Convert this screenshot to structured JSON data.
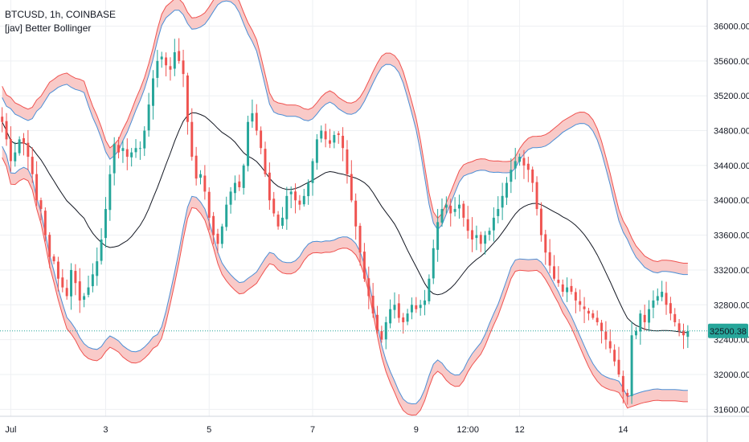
{
  "legend": {
    "symbol": "BTCUSD, 1h, COINBASE",
    "indicator": "[jav] Better Bollinger"
  },
  "price_badge": {
    "label": "32500.38",
    "color": "#26a69a"
  },
  "colors": {
    "up": "#26a69a",
    "down": "#ef5350",
    "upper_band": "#4b8fd6",
    "lower_band": "#ef5350",
    "basis": "#131722",
    "band_fill": "#f7b8b6",
    "grid": "#eef0f3"
  },
  "chart_data": {
    "type": "candlestick",
    "symbol": "BTCUSD",
    "interval": "1h",
    "exchange": "COINBASE",
    "indicator": "[jav] Better Bollinger",
    "x_ticks": [
      {
        "label": "Jul",
        "i": 2
      },
      {
        "label": "3",
        "i": 24
      },
      {
        "label": "5",
        "i": 48
      },
      {
        "label": "7",
        "i": 72
      },
      {
        "label": "9",
        "i": 96
      },
      {
        "label": "12:00",
        "i": 108
      },
      {
        "label": "12",
        "i": 120
      },
      {
        "label": "14",
        "i": 144
      }
    ],
    "y_ticks": [
      31600,
      32000,
      32400,
      32800,
      33200,
      33600,
      34000,
      34400,
      34800,
      35200,
      35600,
      36000
    ],
    "y_tick_labels": [
      "31600.00",
      "32000.00",
      "32400.00",
      "32800.00",
      "33200.00",
      "33600.00",
      "34000.00",
      "34400.00",
      "34800.00",
      "35200.00",
      "35600.00",
      "36000.00"
    ],
    "ylim": [
      31520,
      36300
    ],
    "x_range": [
      -0.5,
      163.5
    ],
    "last_price": 32500.38,
    "closes": [
      34900,
      34700,
      34450,
      34550,
      34700,
      34650,
      34500,
      34300,
      34000,
      33900,
      33600,
      33350,
      33300,
      33100,
      33000,
      32900,
      33200,
      33050,
      32850,
      32900,
      33000,
      33150,
      33300,
      33550,
      33900,
      34300,
      34650,
      34550,
      34600,
      34500,
      34550,
      34600,
      34600,
      34800,
      35100,
      35400,
      35600,
      35650,
      35550,
      35500,
      35700,
      35600,
      35450,
      34900,
      34500,
      34250,
      34300,
      34100,
      33800,
      33600,
      33500,
      33700,
      33950,
      34100,
      34200,
      34150,
      34400,
      34900,
      35000,
      34800,
      34600,
      34300,
      34000,
      33850,
      33700,
      33800,
      34050,
      34100,
      34000,
      33950,
      34050,
      34200,
      34450,
      34700,
      34800,
      34700,
      34650,
      34750,
      34750,
      34600,
      34300,
      34000,
      33700,
      33400,
      33100,
      32900,
      32700,
      32500,
      32400,
      32600,
      32750,
      32800,
      32650,
      32600,
      32700,
      32800,
      32750,
      32800,
      32850,
      33100,
      33450,
      33750,
      33900,
      33950,
      33850,
      33900,
      33950,
      33800,
      33650,
      33550,
      33600,
      33500,
      33600,
      33650,
      33800,
      33900,
      34050,
      34200,
      34350,
      34450,
      34500,
      34400,
      34350,
      34200,
      33900,
      33600,
      33400,
      33250,
      33100,
      33050,
      32950,
      33000,
      32950,
      32850,
      32800,
      32750,
      32700,
      32650,
      32600,
      32500,
      32400,
      32300,
      32150,
      32000,
      31800,
      31750,
      32450,
      32500,
      32700,
      32600,
      32750,
      32850,
      32900,
      32950,
      32800,
      32700,
      32600,
      32500,
      32450,
      32500
    ]
  }
}
